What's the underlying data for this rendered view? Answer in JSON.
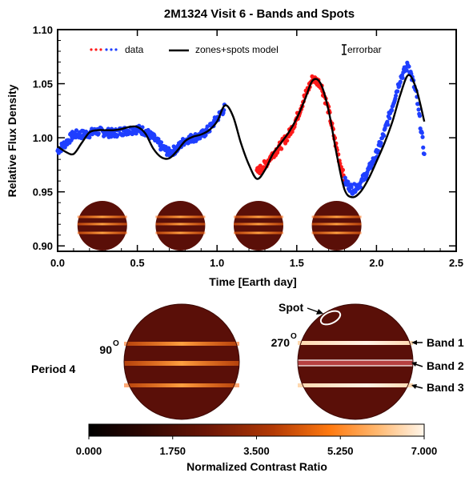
{
  "chart_data": [
    {
      "type": "scatter",
      "title": "2M1324 Visit 6 - Bands and Spots",
      "xlabel": "Time [Earth day]",
      "ylabel": "Relative Flux Density",
      "xlim": [
        0.0,
        2.5
      ],
      "ylim": [
        0.895,
        1.1
      ],
      "xticks": [
        "0.0",
        "0.5",
        "1.0",
        "1.5",
        "2.0",
        "2.5"
      ],
      "yticks": [
        "0.90",
        "0.95",
        "1.00",
        "1.05",
        "1.10"
      ],
      "grid": false,
      "legend": [
        "data",
        "zones+spots model",
        "errorbar"
      ],
      "series": [
        {
          "name": "data",
          "color_segments": [
            {
              "from": 0.0,
              "to": 1.25,
              "color": "#1f3fff"
            },
            {
              "from": 1.25,
              "to": 1.8,
              "color": "#ff1a1a"
            },
            {
              "from": 1.8,
              "to": 2.3,
              "color": "#1f3fff"
            }
          ],
          "x": [
            0.0,
            0.05,
            0.1,
            0.15,
            0.2,
            0.25,
            0.3,
            0.35,
            0.4,
            0.45,
            0.5,
            0.55,
            0.6,
            0.65,
            0.7,
            0.75,
            0.8,
            0.85,
            0.9,
            0.95,
            1.0,
            1.05,
            1.25,
            1.3,
            1.35,
            1.4,
            1.45,
            1.5,
            1.55,
            1.6,
            1.65,
            1.7,
            1.75,
            1.8,
            1.85,
            1.9,
            1.95,
            2.0,
            2.05,
            2.1,
            2.15,
            2.2,
            2.25,
            2.3
          ],
          "y": [
            0.988,
            0.995,
            1.003,
            1.003,
            1.004,
            1.006,
            1.005,
            1.004,
            1.006,
            1.007,
            1.008,
            1.006,
            1.0,
            0.992,
            0.986,
            0.99,
            0.998,
            1.0,
            1.002,
            1.008,
            1.018,
            1.028,
            0.968,
            0.975,
            0.985,
            0.993,
            1.003,
            1.018,
            1.038,
            1.055,
            1.05,
            1.025,
            0.99,
            0.96,
            0.952,
            0.958,
            0.97,
            0.985,
            1.005,
            1.03,
            1.055,
            1.068,
            1.04,
            0.985
          ]
        },
        {
          "name": "zones+spots model",
          "color": "#000000",
          "x": [
            0.0,
            0.05,
            0.1,
            0.15,
            0.2,
            0.25,
            0.3,
            0.35,
            0.4,
            0.45,
            0.5,
            0.55,
            0.6,
            0.65,
            0.7,
            0.75,
            0.8,
            0.85,
            0.9,
            0.95,
            1.0,
            1.05,
            1.1,
            1.15,
            1.2,
            1.25,
            1.3,
            1.35,
            1.4,
            1.45,
            1.5,
            1.55,
            1.6,
            1.65,
            1.7,
            1.75,
            1.8,
            1.85,
            1.9,
            1.95,
            2.0,
            2.05,
            2.1,
            2.15,
            2.2,
            2.25,
            2.3
          ],
          "y": [
            0.992,
            0.987,
            0.985,
            0.995,
            1.005,
            1.007,
            1.007,
            1.007,
            1.008,
            1.01,
            1.01,
            1.004,
            0.99,
            0.982,
            0.981,
            0.988,
            0.997,
            1.001,
            1.003,
            1.007,
            1.015,
            1.03,
            1.02,
            0.995,
            0.975,
            0.962,
            0.97,
            0.985,
            0.995,
            1.005,
            1.018,
            1.035,
            1.053,
            1.05,
            1.025,
            0.985,
            0.952,
            0.945,
            0.95,
            0.962,
            0.978,
            0.995,
            1.015,
            1.04,
            1.058,
            1.045,
            1.015
          ]
        }
      ]
    },
    {
      "type": "heatmap",
      "colorbar_label": "Normalized Contrast Ratio",
      "colorbar_ticks": [
        "0.000",
        "1.750",
        "3.500",
        "5.250",
        "7.000"
      ],
      "colorbar_range": [
        0.0,
        7.0
      ]
    }
  ],
  "labels": {
    "angle1": "90",
    "angle2": "270",
    "degree": "O",
    "period": "Period 4",
    "spot": "Spot",
    "band1": "Band 1",
    "band2": "Band 2",
    "band3": "Band 3"
  },
  "colors": {
    "globe": "#5a0f08",
    "band": "#ff8a2a",
    "band_bright": "#ffe6c8"
  }
}
